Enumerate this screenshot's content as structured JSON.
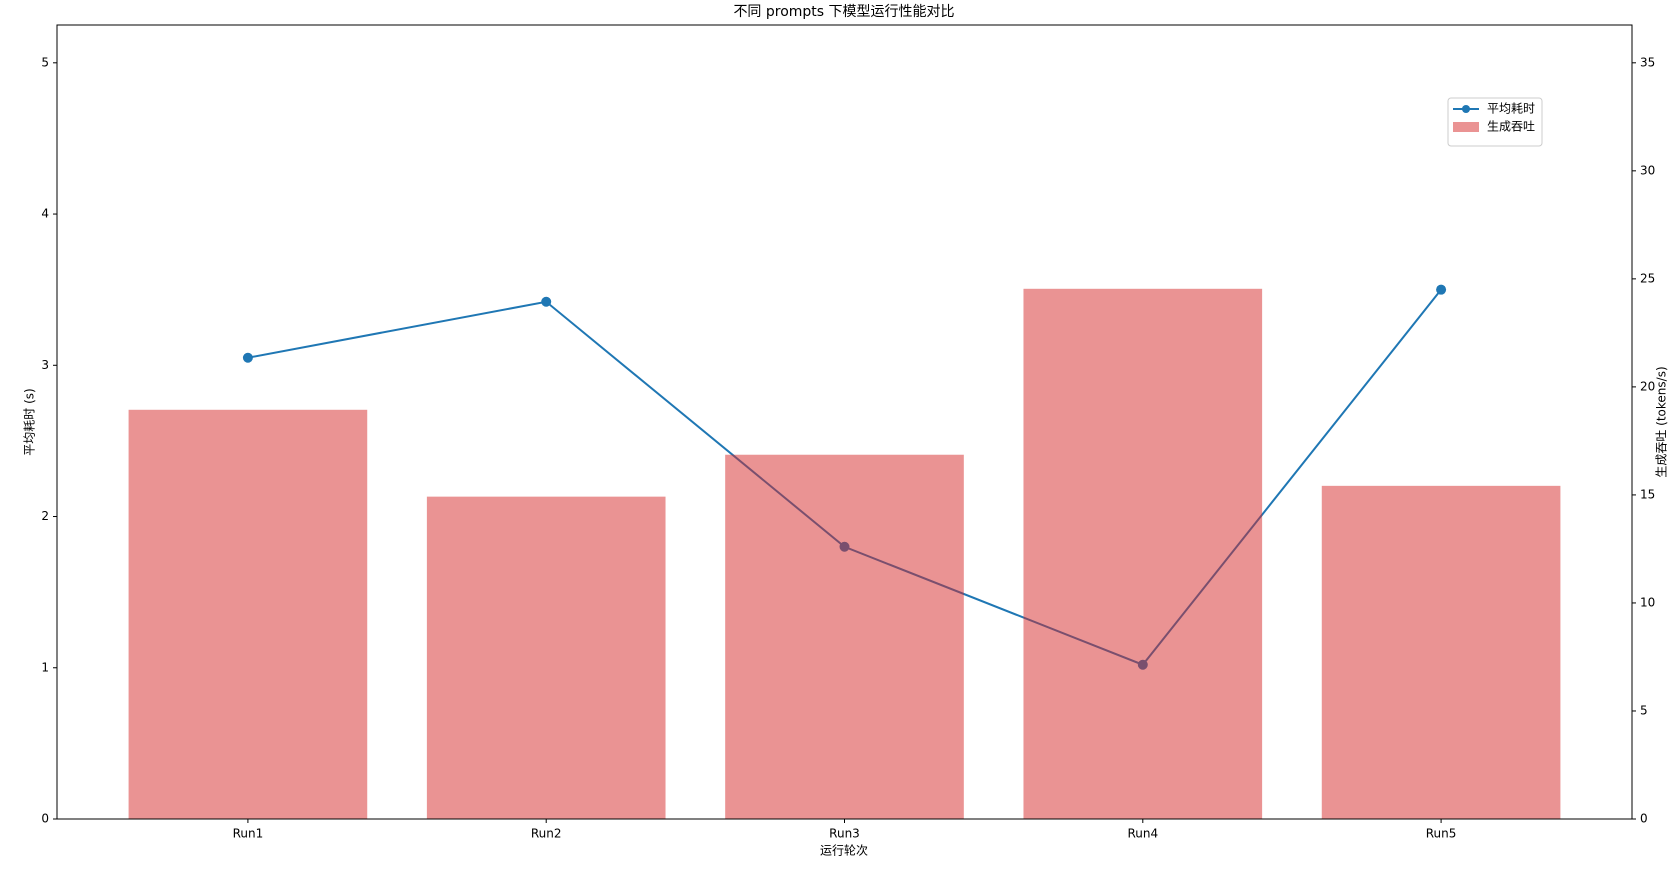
{
  "chart_data": {
    "type": "bar-line",
    "title": "不同 prompts 下模型运行性能对比",
    "x_label": "运行轮次",
    "y_label": "平均耗时 (s)",
    "y2_label": "生成吞吐 (tokens/s)",
    "categories": [
      "Run1",
      "Run2",
      "Run3",
      "Run4",
      "Run5"
    ],
    "series": [
      {
        "name": "平均耗时",
        "type": "line",
        "color": "#1f77b4",
        "values": [
          3.05,
          3.42,
          1.8,
          1.02,
          3.5
        ]
      },
      {
        "name": "生成吞吐",
        "type": "bar",
        "axis": "y2",
        "color": "#d62728",
        "values": [
          18.94,
          14.92,
          16.86,
          24.54,
          15.42
        ]
      }
    ],
    "ylim": [
      0,
      5.25
    ],
    "yticks": [
      0,
      1,
      2,
      3,
      4,
      5
    ],
    "y_color": "#1f77b4",
    "y2lim": [
      0,
      36.75
    ],
    "y2ticks": [
      0,
      5,
      10,
      15,
      20,
      25,
      30,
      35
    ],
    "y2_color": "#d62728",
    "legend": "upper right"
  }
}
